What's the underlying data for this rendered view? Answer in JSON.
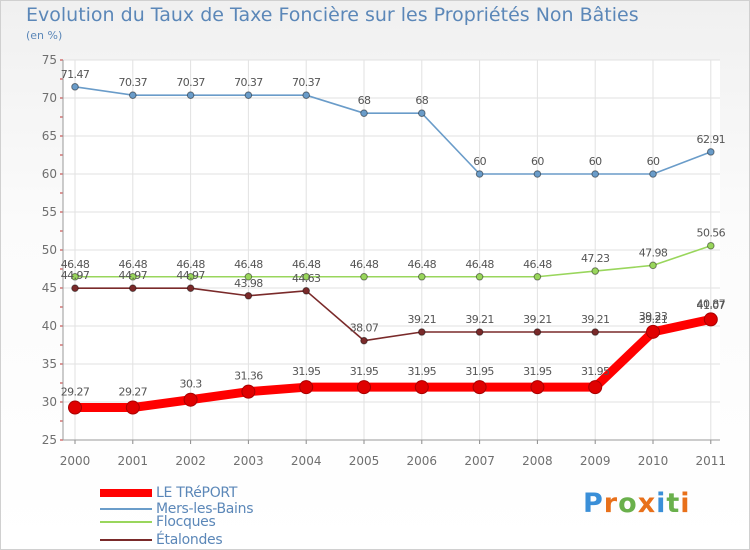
{
  "title": "Evolution du Taux de Taxe Foncière sur les Propriétés Non Bâties",
  "unit_label": "(en %)",
  "brand": {
    "letters": [
      "P",
      "r",
      "o",
      "x",
      "i",
      "t",
      "i"
    ],
    "letter_colors": [
      "#3a8fd8",
      "#e8701a",
      "#6ab04c",
      "#e8701a",
      "#3a8fd8",
      "#6ab04c",
      "#e8701a"
    ]
  },
  "chart_data": {
    "type": "line",
    "title": "Evolution du Taux de Taxe Foncière sur les Propriétés Non Bâties",
    "ylabel": "(en %)",
    "xlabel": "",
    "x": [
      "2000",
      "2001",
      "2002",
      "2003",
      "2004",
      "2005",
      "2006",
      "2007",
      "2008",
      "2009",
      "2010",
      "2011"
    ],
    "ylim": [
      25,
      75
    ],
    "yticks": [
      "25",
      "30",
      "35",
      "40",
      "45",
      "50",
      "55",
      "60",
      "65",
      "70",
      "75"
    ],
    "grid": true,
    "legend_position": "bottom-left",
    "series": [
      {
        "name": "LE TRéPORT",
        "color": "#ff0000",
        "emphasis": true,
        "values": [
          29.27,
          29.27,
          30.3,
          31.36,
          31.95,
          31.95,
          31.95,
          31.95,
          31.95,
          31.95,
          39.23,
          40.87
        ],
        "labels": [
          "29.27",
          "29.27",
          "30.3",
          "31.36",
          "31.95",
          "31.95",
          "31.95",
          "31.95",
          "31.95",
          "31.95",
          "39.23",
          "40.87"
        ]
      },
      {
        "name": "Mers-les-Bains",
        "color": "#6a9cc9",
        "values": [
          71.47,
          70.37,
          70.37,
          70.37,
          70.37,
          68,
          68,
          60,
          60,
          60,
          60,
          62.91
        ],
        "labels": [
          "71.47",
          "70.37",
          "70.37",
          "70.37",
          "70.37",
          "68",
          "68",
          "60",
          "60",
          "60",
          "60",
          "62.91"
        ]
      },
      {
        "name": "Flocques",
        "color": "#99d65c",
        "values": [
          46.48,
          46.48,
          46.48,
          46.48,
          46.48,
          46.48,
          46.48,
          46.48,
          46.48,
          47.23,
          47.98,
          50.56
        ],
        "labels": [
          "46.48",
          "46.48",
          "46.48",
          "46.48",
          "46.48",
          "46.48",
          "46.48",
          "46.48",
          "46.48",
          "47.23",
          "47.98",
          "50.56"
        ]
      },
      {
        "name": "Étalondes",
        "color": "#7a2a2a",
        "values": [
          44.97,
          44.97,
          44.97,
          43.98,
          44.63,
          38.07,
          39.21,
          39.21,
          39.21,
          39.21,
          39.21,
          41.07
        ],
        "labels": [
          "44.97",
          "44.97",
          "44.97",
          "43.98",
          "44.63",
          "38.07",
          "39.21",
          "39.21",
          "39.21",
          "39.21",
          "39.21",
          "41.07"
        ]
      }
    ]
  }
}
